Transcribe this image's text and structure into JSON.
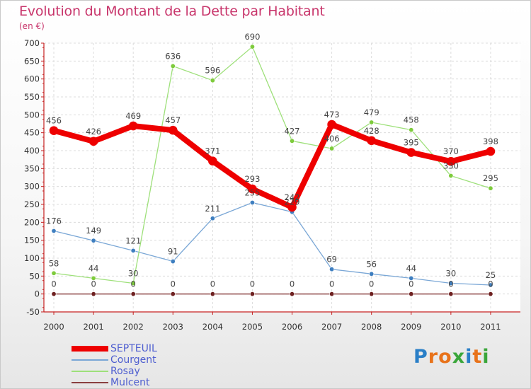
{
  "title": "Evolution du Montant de la Dette par Habitant",
  "unit_label": "(en €)",
  "brand": {
    "letters": [
      "P",
      "r",
      "o",
      "x",
      "i",
      "t",
      "i"
    ],
    "letter_colors": [
      "#2a7fc7",
      "#e8731b",
      "#e8731b",
      "#3aa63a",
      "#2a7fc7",
      "#e8731b",
      "#3aa63a"
    ]
  },
  "chart_data": {
    "type": "line",
    "x": [
      "2000",
      "2001",
      "2002",
      "2003",
      "2004",
      "2005",
      "2006",
      "2007",
      "2008",
      "2009",
      "2010",
      "2011"
    ],
    "ylim": [
      -50,
      700
    ],
    "yticks": [
      -50,
      0,
      50,
      100,
      150,
      200,
      250,
      300,
      350,
      400,
      450,
      500,
      550,
      600,
      650,
      700
    ],
    "grid": true,
    "legend_position": "bottom-left",
    "series": [
      {
        "name": "SEPTEUIL",
        "color": "#ee0000",
        "point_color": "#ee0000",
        "width": 8,
        "point_radius": 6,
        "values": [
          456,
          426,
          469,
          457,
          371,
          293,
          242,
          473,
          428,
          395,
          370,
          398
        ]
      },
      {
        "name": "Courgent",
        "color": "#7aa7d6",
        "point_color": "#3f7fc0",
        "width": 1.3,
        "point_radius": 3.2,
        "values": [
          176,
          149,
          121,
          91,
          211,
          255,
          229,
          69,
          56,
          44,
          30,
          25
        ]
      },
      {
        "name": "Rosay",
        "color": "#9ee07a",
        "point_color": "#7ecb3c",
        "width": 1.3,
        "point_radius": 3.2,
        "values": [
          58,
          44,
          30,
          636,
          596,
          690,
          427,
          406,
          479,
          458,
          330,
          295
        ]
      },
      {
        "name": "Mulcent",
        "color": "#8a4040",
        "point_color": "#6e2020",
        "width": 1.3,
        "point_radius": 3.2,
        "values": [
          0,
          0,
          0,
          0,
          0,
          0,
          0,
          0,
          0,
          0,
          0,
          0
        ]
      }
    ]
  }
}
